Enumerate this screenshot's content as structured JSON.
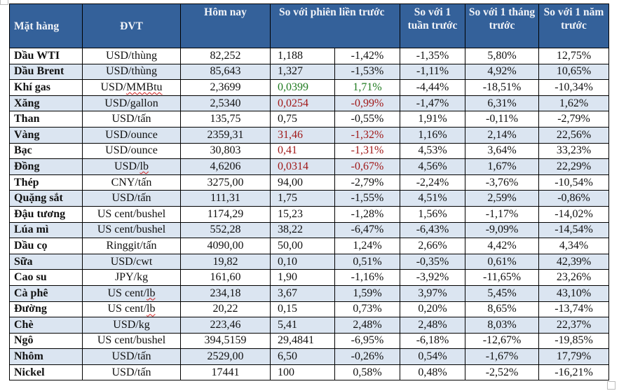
{
  "colors": {
    "header_bg": "#34619a",
    "alt_row_bg": "#dbe5f1",
    "up": "#1e7a1e",
    "down": "#a01818"
  },
  "headers": {
    "item": "Mặt hàng",
    "unit": "ĐVT",
    "today": "Hôm nay",
    "prev_session": "So với phiên liền trước",
    "week": "So với 1 tuần trước",
    "month": "So với 1 tháng trước",
    "year": "So với 1 năm trước"
  },
  "rows": [
    {
      "item": "Dầu WTI",
      "unit": "USD/thùng",
      "today": "82,252",
      "chg": "1,188",
      "pct": "-1,42%",
      "week": "-1,35%",
      "month": "5,80%",
      "year": "12,75%",
      "tone": ""
    },
    {
      "item": "Dầu Brent",
      "unit": "USD/thùng",
      "today": "85,643",
      "chg": "1,327",
      "pct": "-1,53%",
      "week": "-1,11%",
      "month": "4,92%",
      "year": "10,65%",
      "tone": ""
    },
    {
      "item": "Khí gas",
      "unit": "USD/MMBtu",
      "today": "2,3699",
      "chg": "0,0399",
      "pct": "1,71%",
      "week": "-4,44%",
      "month": "-18,51%",
      "year": "-10,34%",
      "tone": "up"
    },
    {
      "item": "Xăng",
      "unit": "USD/gallon",
      "today": "2,5340",
      "chg": "0,0254",
      "pct": "-0,99%",
      "week": "-1,47%",
      "month": "6,31%",
      "year": "1,62%",
      "tone": "down"
    },
    {
      "item": "Than",
      "unit": "USD/tấn",
      "today": "135,75",
      "chg": "0,75",
      "pct": "-0,55%",
      "week": "1,91%",
      "month": "-0,11%",
      "year": "-2,79%",
      "tone": ""
    },
    {
      "item": "Vàng",
      "unit": "USD/ounce",
      "today": "2359,31",
      "chg": "31,46",
      "pct": "-1,32%",
      "week": "1,16%",
      "month": "2,14%",
      "year": "22,56%",
      "tone": "down"
    },
    {
      "item": "Bạc",
      "unit": "USD/ounce",
      "today": "30,803",
      "chg": "0,41",
      "pct": "-1,31%",
      "week": "4,53%",
      "month": "3,64%",
      "year": "33,23%",
      "tone": "down"
    },
    {
      "item": "Đồng",
      "unit": "USD/lb",
      "today": "4,6206",
      "chg": "0,0314",
      "pct": "-0,67%",
      "week": "4,56%",
      "month": "1,67%",
      "year": "22,29%",
      "tone": "down"
    },
    {
      "item": "Thép",
      "unit": "CNY/tấn",
      "today": "3275,00",
      "chg": "94,00",
      "pct": "-2,79%",
      "week": "-2,24%",
      "month": "-3,76%",
      "year": "-10,54%",
      "tone": ""
    },
    {
      "item": "Quặng sắt",
      "unit": "USD/tấn",
      "today": "111,31",
      "chg": "1,75",
      "pct": "-1,55%",
      "week": "4,51%",
      "month": "2,59%",
      "year": "-0,86%",
      "tone": ""
    },
    {
      "item": "Đậu tương",
      "unit": "US cent/bushel",
      "today": "1174,29",
      "chg": "15,23",
      "pct": "-1,28%",
      "week": "1,56%",
      "month": "-1,17%",
      "year": "-14,02%",
      "tone": ""
    },
    {
      "item": "Lúa mì",
      "unit": "US cent/bushel",
      "today": "552,28",
      "chg": "38,22",
      "pct": "-6,47%",
      "week": "-6,43%",
      "month": "-9,09%",
      "year": "-14,54%",
      "tone": ""
    },
    {
      "item": "Dầu cọ",
      "unit": "Ringgit/tấn",
      "today": "4090,00",
      "chg": "50,00",
      "pct": "1,24%",
      "week": "2,66%",
      "month": "4,42%",
      "year": "4,34%",
      "tone": ""
    },
    {
      "item": "Sữa",
      "unit": "USD/cwt",
      "today": "19,82",
      "chg": "0,10",
      "pct": "0,51%",
      "week": "-0,35%",
      "month": "0,61%",
      "year": "42,39%",
      "tone": ""
    },
    {
      "item": "Cao su",
      "unit": "JPY/kg",
      "today": "161,60",
      "chg": "1,90",
      "pct": "-1,16%",
      "week": "-3,92%",
      "month": "-11,65%",
      "year": "23,26%",
      "tone": ""
    },
    {
      "item": "Cà phê",
      "unit": "US cent/lb",
      "today": "234,18",
      "chg": "3,67",
      "pct": "1,59%",
      "week": "3,97%",
      "month": "5,45%",
      "year": "43,10%",
      "tone": ""
    },
    {
      "item": "Đường",
      "unit": "US cent/lb",
      "today": "20,22",
      "chg": "0,15",
      "pct": "0,73%",
      "week": "0,20%",
      "month": "8,65%",
      "year": "-13,74%",
      "tone": ""
    },
    {
      "item": "Chè",
      "unit": "USD/kg",
      "today": "223,46",
      "chg": "5,41",
      "pct": "2,48%",
      "week": "2,48%",
      "month": "8,03%",
      "year": "22,37%",
      "tone": ""
    },
    {
      "item": "Ngô",
      "unit": "US cent/bushel",
      "today": "394,5159",
      "chg": "29,4841",
      "pct": "-6,95%",
      "week": "-6,18%",
      "month": "-12,67%",
      "year": "-19,85%",
      "tone": ""
    },
    {
      "item": "Nhôm",
      "unit": "USD/tấn",
      "today": "2529,00",
      "chg": "6,50",
      "pct": "-0,26%",
      "week": "0,54%",
      "month": "-1,67%",
      "year": "17,79%",
      "tone": ""
    },
    {
      "item": "Nickel",
      "unit": "USD/tấn",
      "today": "17441",
      "chg": "100",
      "pct": "0,58%",
      "week": "0,48%",
      "month": "-2,52%",
      "year": "-16,21%",
      "tone": ""
    }
  ]
}
